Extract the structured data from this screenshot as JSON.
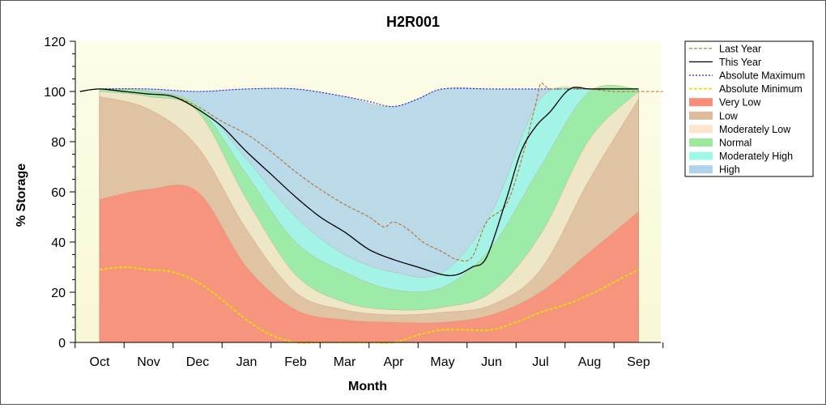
{
  "chart_data": {
    "type": "area",
    "title": "H2R001",
    "xlabel": "Month",
    "ylabel": "% Storage",
    "ylim": [
      0,
      120
    ],
    "yticks": [
      0,
      20,
      40,
      60,
      80,
      100,
      120
    ],
    "categories": [
      "Oct",
      "Nov",
      "Dec",
      "Jan",
      "Feb",
      "Mar",
      "Apr",
      "May",
      "Jun",
      "Jul",
      "Aug",
      "Sep"
    ],
    "legend_position": "right",
    "x": [
      0,
      1,
      2,
      3,
      4,
      5,
      6,
      7,
      8,
      9,
      10,
      11
    ],
    "bands": [
      {
        "name": "Very Low",
        "color": "#fa8c78",
        "upper": [
          57,
          61,
          60,
          30,
          13,
          9,
          8,
          8,
          11,
          20,
          36,
          52
        ]
      },
      {
        "name": "Low",
        "color": "#dcbc9c",
        "upper": [
          98,
          93,
          78,
          45,
          20,
          13,
          11,
          12,
          15,
          29,
          65,
          97
        ]
      },
      {
        "name": "Moderately Low",
        "color": "#fce6cc",
        "upper": [
          100,
          98,
          92,
          57,
          27,
          16,
          13,
          14,
          20,
          43,
          81,
          100
        ]
      },
      {
        "name": "Normal",
        "color": "#9ce99c",
        "upper": [
          101,
          100,
          94,
          67,
          40,
          28,
          21,
          22,
          38,
          70,
          100,
          101
        ]
      },
      {
        "name": "Moderately High",
        "color": "#9ff8e6",
        "upper": [
          101,
          100,
          95,
          73,
          50,
          35,
          28,
          28,
          52,
          97,
          101,
          101
        ]
      },
      {
        "name": "High",
        "color": "#aed3ea",
        "upper": [
          101,
          101,
          100,
          101,
          101,
          98,
          94,
          101,
          101,
          101,
          101,
          101
        ]
      }
    ],
    "series": [
      {
        "name": "Last Year",
        "color": "#b8702f",
        "style": "dashed",
        "x": [
          -0.4,
          0,
          0.5,
          1,
          1.5,
          2,
          2.5,
          3,
          3.5,
          4,
          4.5,
          5,
          5.5,
          5.8,
          6,
          6.3,
          6.6,
          7,
          7.3,
          7.6,
          7.9,
          8.3,
          8.6,
          8.9,
          9.0,
          9.1,
          9.2,
          9.5,
          10,
          10.5,
          11,
          11.5
        ],
        "y": [
          100,
          101,
          100,
          99,
          98,
          94,
          88,
          83,
          76,
          68,
          61,
          55,
          50,
          46,
          48,
          45,
          40,
          36,
          33,
          34,
          48,
          55,
          72,
          95,
          103,
          102,
          101,
          101,
          101,
          100,
          100,
          100
        ]
      },
      {
        "name": "This Year",
        "color": "#000000",
        "style": "solid",
        "x": [
          -0.4,
          0,
          0.5,
          1,
          1.5,
          2,
          2.5,
          3,
          3.5,
          4,
          4.5,
          5,
          5.5,
          6,
          6.5,
          7,
          7.3,
          7.6,
          7.9,
          8.3,
          8.6,
          8.9,
          9.2,
          9.6,
          10,
          10.5,
          11
        ],
        "y": [
          100,
          101,
          100,
          99,
          98,
          93,
          86,
          76,
          67,
          58,
          50,
          44,
          37,
          33,
          30,
          27,
          27,
          30,
          34,
          57,
          76,
          86,
          92,
          101,
          101,
          101,
          101
        ]
      },
      {
        "name": "Absolute Maximum",
        "color": "#2020e0",
        "style": "dotted",
        "x": [
          -0.4,
          0,
          1,
          2,
          3,
          4,
          5,
          5.5,
          6,
          6.5,
          7,
          8,
          9,
          10,
          11
        ],
        "y": [
          100,
          101,
          101,
          100,
          101,
          101,
          98,
          96,
          94,
          97,
          101,
          101,
          101,
          101,
          101
        ]
      },
      {
        "name": "Absolute Minimum",
        "color": "#e8e000",
        "style": "dashed",
        "x": [
          0,
          0.5,
          1,
          1.5,
          2,
          2.5,
          3,
          3.5,
          4,
          4.5,
          5,
          5.5,
          6,
          6.5,
          7,
          7.5,
          8,
          8.5,
          9,
          9.5,
          10,
          10.5,
          11
        ],
        "y": [
          29,
          30,
          29,
          28,
          24,
          17,
          9,
          3,
          0,
          0,
          0,
          0,
          0,
          3,
          5,
          5,
          5,
          8,
          12,
          15,
          19,
          24,
          29
        ]
      }
    ]
  },
  "legend": [
    {
      "label": "Last Year",
      "kind": "line",
      "color": "#b8702f",
      "style": "dashed"
    },
    {
      "label": "This Year",
      "kind": "line",
      "color": "#000000",
      "style": "solid"
    },
    {
      "label": "Absolute Maximum",
      "kind": "line",
      "color": "#2020e0",
      "style": "dotted"
    },
    {
      "label": "Absolute Minimum",
      "kind": "line",
      "color": "#e8e000",
      "style": "dashed"
    },
    {
      "label": "Very Low",
      "kind": "area",
      "color": "#fa8c78"
    },
    {
      "label": "Low",
      "kind": "area",
      "color": "#dcbc9c"
    },
    {
      "label": "Moderately Low",
      "kind": "area",
      "color": "#fce6cc"
    },
    {
      "label": "Normal",
      "kind": "area",
      "color": "#9ce99c"
    },
    {
      "label": "Moderately High",
      "kind": "area",
      "color": "#9ff8e6"
    },
    {
      "label": "High",
      "kind": "area",
      "color": "#aed3ea"
    }
  ]
}
